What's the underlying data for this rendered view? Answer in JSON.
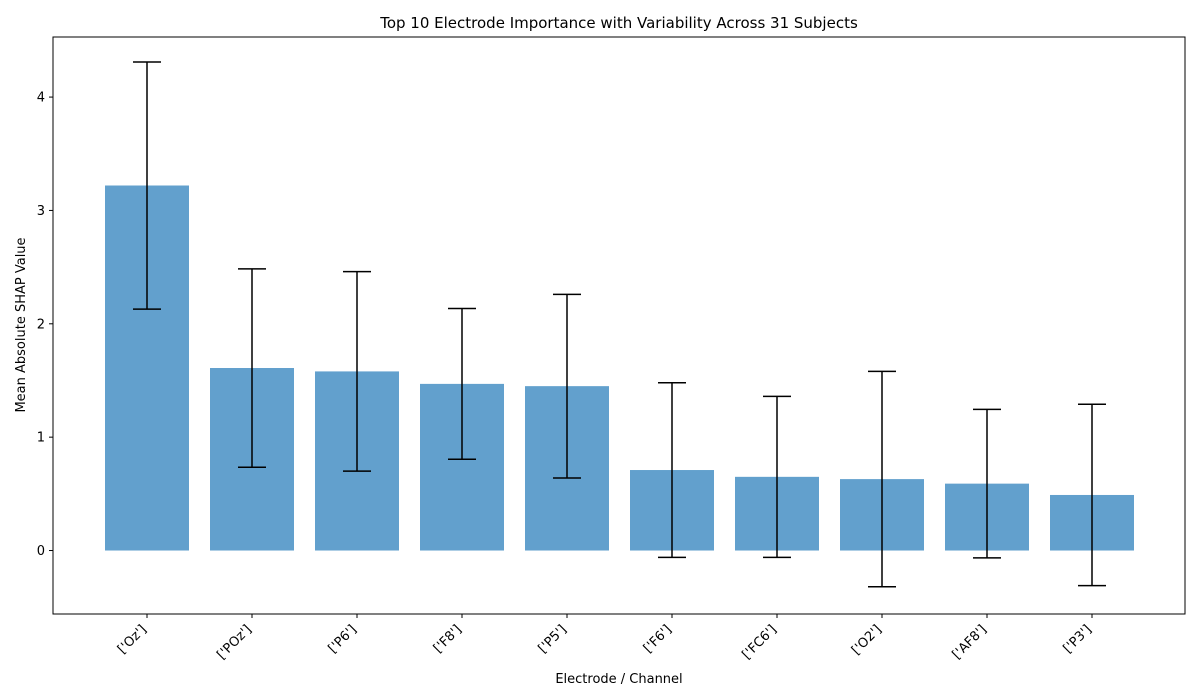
{
  "chart_data": {
    "type": "bar",
    "title": "Top 10 Electrode Importance with Variability Across 31 Subjects",
    "xlabel": "Electrode / Channel",
    "ylabel": "Mean Absolute SHAP Value",
    "categories": [
      "['Oz']",
      "['POz']",
      "['P6']",
      "['F8']",
      "['P5']",
      "['F6']",
      "['FC6']",
      "['O2']",
      "['AF8']",
      "['P3']"
    ],
    "values": [
      3.22,
      1.61,
      1.58,
      1.47,
      1.45,
      0.71,
      0.65,
      0.63,
      0.59,
      0.49
    ],
    "error": [
      1.09,
      0.875,
      0.88,
      0.665,
      0.81,
      0.77,
      0.71,
      0.95,
      0.655,
      0.8
    ],
    "ylim": [
      -0.56,
      4.53
    ],
    "yticks": [
      0,
      1,
      2,
      3,
      4
    ],
    "bar_color": "#62A0CD",
    "error_color": "#000000",
    "grid": false,
    "legend": "none"
  }
}
